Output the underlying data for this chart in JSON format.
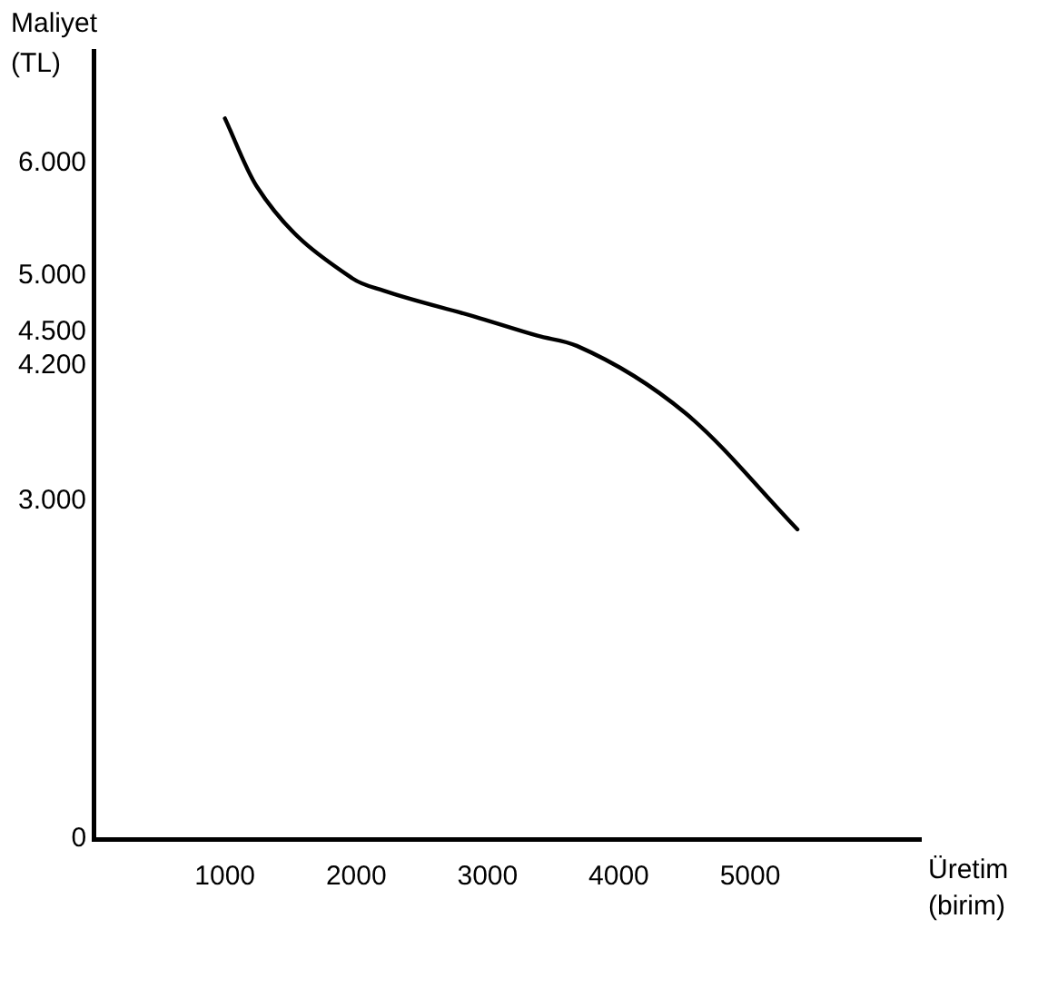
{
  "chart_data": {
    "type": "line",
    "xlabel": "Üretim (birim)",
    "ylabel": "Maliyet (TL)",
    "x": [
      1000,
      1240,
      1970,
      2210,
      2900,
      3380,
      3680,
      4510,
      5360
    ],
    "series": [
      {
        "color": "#000000",
        "values": [
          6400,
          5800,
          4980,
          4870,
          4640,
          4470,
          4380,
          3780,
          2750
        ]
      }
    ],
    "xlim": [
      0,
      6300
    ],
    "xticks": [
      1000,
      2000,
      3000,
      4000,
      5000
    ],
    "ylim": [
      0,
      7000
    ],
    "yticks": [
      0,
      {
        "value": 3000,
        "label": "3.000"
      },
      {
        "value": 4200,
        "label": "4.200"
      },
      {
        "value": 4500,
        "label": "4.500"
      },
      {
        "value": 5000,
        "label": "5.000"
      },
      {
        "value": 6000,
        "label": "6.000"
      }
    ],
    "grid": false,
    "legend": false,
    "marker": "none",
    "line_style": "solid"
  }
}
